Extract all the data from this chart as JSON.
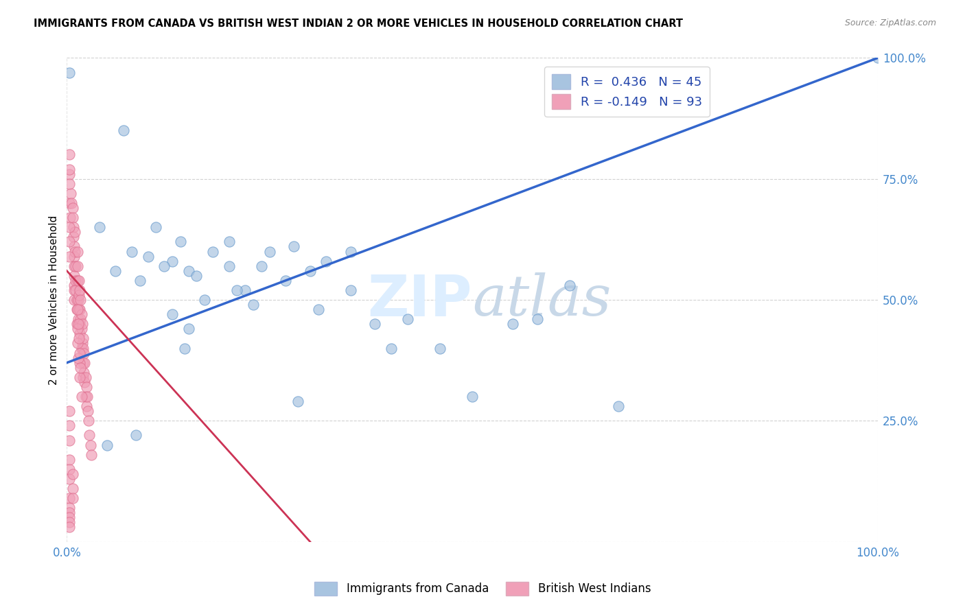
{
  "title": "IMMIGRANTS FROM CANADA VS BRITISH WEST INDIAN 2 OR MORE VEHICLES IN HOUSEHOLD CORRELATION CHART",
  "source": "Source: ZipAtlas.com",
  "ylabel": "2 or more Vehicles in Household",
  "ytick_labels": [
    "",
    "25.0%",
    "50.0%",
    "75.0%",
    "100.0%"
  ],
  "ytick_values": [
    0.0,
    0.25,
    0.5,
    0.75,
    1.0
  ],
  "xlim": [
    0.0,
    1.0
  ],
  "ylim": [
    0.0,
    1.0
  ],
  "canada_R": 0.436,
  "canada_N": 45,
  "bwi_R": -0.149,
  "bwi_N": 93,
  "canada_color": "#a8c4e0",
  "bwi_color": "#f0a0b8",
  "canada_edge_color": "#6699cc",
  "bwi_edge_color": "#e07090",
  "canada_line_color": "#3366cc",
  "bwi_line_color": "#cc3355",
  "tick_color": "#4488cc",
  "watermark_color": "#ddeeff",
  "legend_label_color": "#2244aa",
  "canada_legend_color": "#a8c4e0",
  "bwi_legend_color": "#f0a0b8",
  "canada_scatter_x": [
    0.003,
    0.07,
    0.04,
    0.08,
    0.11,
    0.13,
    0.14,
    0.15,
    0.18,
    0.2,
    0.06,
    0.09,
    0.12,
    0.1,
    0.16,
    0.2,
    0.22,
    0.24,
    0.27,
    0.3,
    0.32,
    0.35,
    0.13,
    0.15,
    0.17,
    0.21,
    0.23,
    0.25,
    0.28,
    0.31,
    0.35,
    0.38,
    0.42,
    0.46,
    0.5,
    0.55,
    0.62,
    0.68,
    0.05,
    0.085,
    0.145,
    0.285,
    0.4,
    0.58,
    1.0
  ],
  "canada_scatter_y": [
    0.97,
    0.85,
    0.65,
    0.6,
    0.65,
    0.58,
    0.62,
    0.56,
    0.6,
    0.62,
    0.56,
    0.54,
    0.57,
    0.59,
    0.55,
    0.57,
    0.52,
    0.57,
    0.54,
    0.56,
    0.58,
    0.52,
    0.47,
    0.44,
    0.5,
    0.52,
    0.49,
    0.6,
    0.61,
    0.48,
    0.6,
    0.45,
    0.46,
    0.4,
    0.3,
    0.45,
    0.53,
    0.28,
    0.2,
    0.22,
    0.4,
    0.29,
    0.4,
    0.46,
    1.0
  ],
  "bwi_scatter_x": [
    0.003,
    0.003,
    0.003,
    0.004,
    0.005,
    0.006,
    0.007,
    0.007,
    0.008,
    0.008,
    0.009,
    0.009,
    0.009,
    0.009,
    0.009,
    0.009,
    0.009,
    0.01,
    0.01,
    0.011,
    0.011,
    0.011,
    0.012,
    0.012,
    0.012,
    0.013,
    0.013,
    0.013,
    0.014,
    0.014,
    0.015,
    0.015,
    0.015,
    0.016,
    0.016,
    0.016,
    0.016,
    0.017,
    0.017,
    0.018,
    0.018,
    0.018,
    0.019,
    0.019,
    0.02,
    0.02,
    0.02,
    0.02,
    0.021,
    0.021,
    0.022,
    0.022,
    0.023,
    0.023,
    0.024,
    0.024,
    0.025,
    0.026,
    0.027,
    0.028,
    0.029,
    0.03,
    0.013,
    0.013,
    0.016,
    0.014,
    0.016,
    0.018,
    0.013,
    0.014,
    0.015,
    0.016,
    0.017,
    0.003,
    0.003,
    0.003,
    0.007,
    0.007,
    0.003,
    0.003,
    0.007,
    0.003,
    0.003,
    0.003,
    0.003,
    0.003,
    0.003,
    0.003,
    0.003,
    0.003,
    0.003,
    0.003,
    0.003
  ],
  "bwi_scatter_y": [
    0.8,
    0.76,
    0.7,
    0.67,
    0.72,
    0.7,
    0.69,
    0.67,
    0.65,
    0.63,
    0.61,
    0.59,
    0.57,
    0.55,
    0.53,
    0.52,
    0.5,
    0.64,
    0.6,
    0.57,
    0.54,
    0.52,
    0.5,
    0.48,
    0.45,
    0.6,
    0.57,
    0.54,
    0.5,
    0.46,
    0.54,
    0.51,
    0.48,
    0.52,
    0.48,
    0.45,
    0.43,
    0.5,
    0.46,
    0.47,
    0.44,
    0.4,
    0.45,
    0.41,
    0.42,
    0.4,
    0.37,
    0.34,
    0.39,
    0.35,
    0.37,
    0.33,
    0.34,
    0.3,
    0.32,
    0.28,
    0.3,
    0.27,
    0.25,
    0.22,
    0.2,
    0.18,
    0.44,
    0.41,
    0.37,
    0.38,
    0.34,
    0.3,
    0.48,
    0.45,
    0.42,
    0.39,
    0.36,
    0.17,
    0.15,
    0.13,
    0.14,
    0.11,
    0.09,
    0.07,
    0.09,
    0.06,
    0.05,
    0.04,
    0.03,
    0.65,
    0.62,
    0.59,
    0.74,
    0.77,
    0.27,
    0.24,
    0.21
  ],
  "canada_line_x": [
    0.0,
    1.0
  ],
  "canada_line_y": [
    0.37,
    1.0
  ],
  "bwi_line_x": [
    0.0,
    0.3
  ],
  "bwi_line_y": [
    0.56,
    0.0
  ]
}
